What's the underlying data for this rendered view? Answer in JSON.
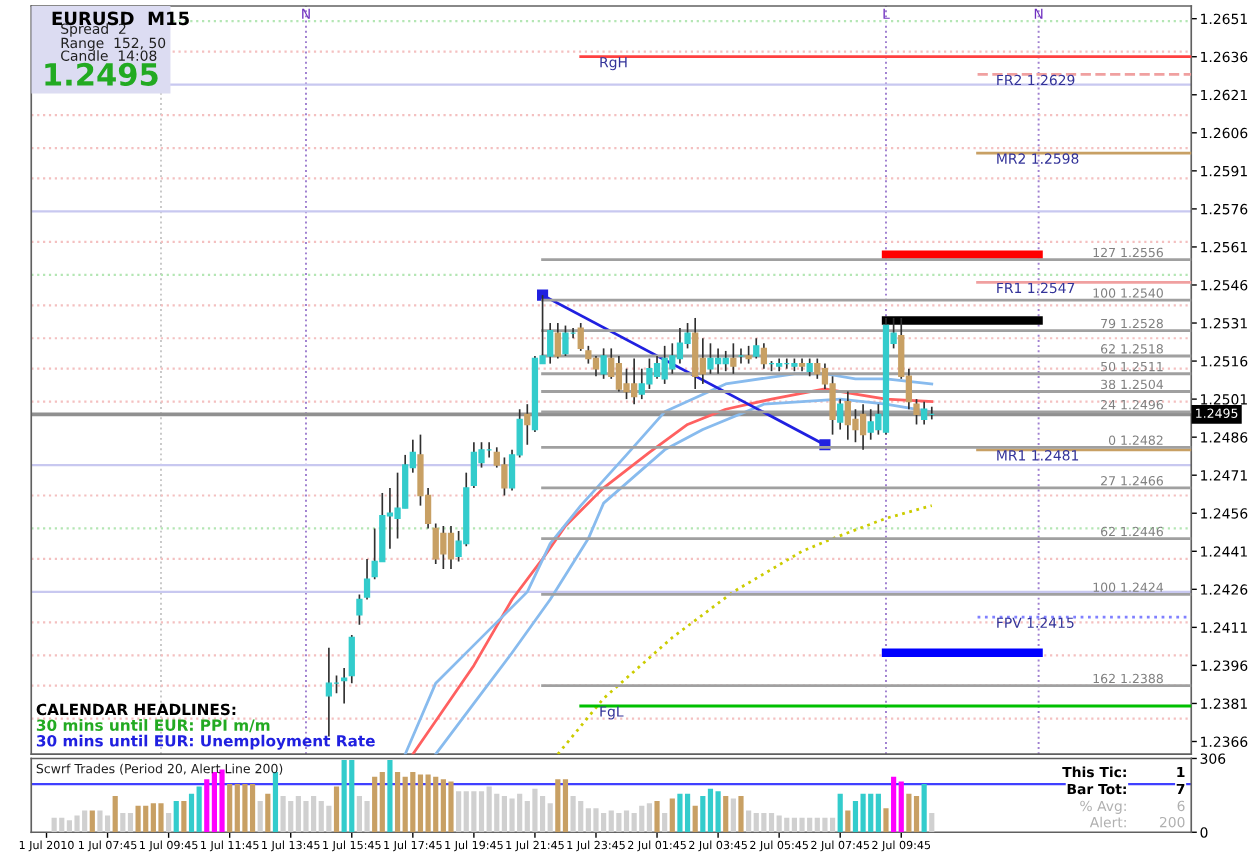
{
  "chart_data": [
    {
      "type": "candlestick",
      "title": "EURUSD  M15",
      "annotations": [
        "Spread  2",
        "Range  152, 50",
        "Candle  14:08",
        "1.2495",
        "CALENDAR HEADLINES:",
        "30 mins until EUR: PPI m/m",
        "30 mins until EUR: Unemployment Rate"
      ],
      "xlim": [
        "2010-07-01T05:15",
        "2010-07-02T19:15"
      ],
      "ylim": [
        1.2361,
        1.2656
      ],
      "yticks": [
        1.2651,
        1.2636,
        1.2621,
        1.2606,
        1.2591,
        1.2576,
        1.2561,
        1.2546,
        1.2531,
        1.2516,
        1.2501,
        1.2486,
        1.2471,
        1.2456,
        1.2441,
        1.2426,
        1.2411,
        1.2396,
        1.2381,
        1.2366
      ],
      "tick_labels": "y",
      "grid": false,
      "legend": false,
      "series": [
        {
          "type": "candlestick",
          "x": [
            "2010-07-01T15:00",
            "2010-07-01T15:15",
            "2010-07-01T15:30",
            "2010-07-01T15:45",
            "2010-07-01T16:00",
            "2010-07-01T16:15",
            "2010-07-01T16:30",
            "2010-07-01T16:45",
            "2010-07-01T17:00",
            "2010-07-01T17:15",
            "2010-07-01T17:30",
            "2010-07-01T17:45",
            "2010-07-01T18:00",
            "2010-07-01T18:15",
            "2010-07-01T18:30",
            "2010-07-01T18:45",
            "2010-07-01T19:00",
            "2010-07-01T19:15",
            "2010-07-01T19:30",
            "2010-07-01T19:45",
            "2010-07-01T20:00",
            "2010-07-01T20:15",
            "2010-07-01T20:30",
            "2010-07-01T20:45",
            "2010-07-01T21:00",
            "2010-07-01T21:15",
            "2010-07-01T21:30",
            "2010-07-01T21:45",
            "2010-07-01T22:00",
            "2010-07-01T22:15",
            "2010-07-01T22:30",
            "2010-07-01T22:45",
            "2010-07-01T23:00",
            "2010-07-01T23:15",
            "2010-07-01T23:30",
            "2010-07-01T23:45",
            "2010-07-02T00:00",
            "2010-07-02T00:15",
            "2010-07-02T00:30",
            "2010-07-02T00:45",
            "2010-07-02T01:00",
            "2010-07-02T01:15",
            "2010-07-02T01:30",
            "2010-07-02T01:45",
            "2010-07-02T02:00",
            "2010-07-02T02:15",
            "2010-07-02T02:30",
            "2010-07-02T02:45",
            "2010-07-02T03:00",
            "2010-07-02T03:15",
            "2010-07-02T03:30",
            "2010-07-02T03:45",
            "2010-07-02T04:00",
            "2010-07-02T04:15",
            "2010-07-02T04:30",
            "2010-07-02T04:45",
            "2010-07-02T05:00",
            "2010-07-02T05:15",
            "2010-07-02T05:30",
            "2010-07-02T05:45",
            "2010-07-02T06:00",
            "2010-07-02T06:15",
            "2010-07-02T06:30",
            "2010-07-02T06:45",
            "2010-07-02T07:00",
            "2010-07-02T07:15",
            "2010-07-02T07:30",
            "2010-07-02T07:45",
            "2010-07-02T08:00",
            "2010-07-02T08:15",
            "2010-07-02T08:30",
            "2010-07-02T08:45",
            "2010-07-02T09:00",
            "2010-07-02T09:15",
            "2010-07-02T09:30",
            "2010-07-02T09:45",
            "2010-07-02T10:00",
            "2010-07-02T10:15",
            "2010-07-02T10:30",
            "2010-07-02T10:45"
          ],
          "ohlc": [
            [
              1.2384,
              1.2403,
              1.2368,
              1.2389
            ],
            [
              1.2389,
              1.2392,
              1.2385,
              1.2389
            ],
            [
              1.239,
              1.2395,
              1.2381,
              1.2391
            ],
            [
              1.2392,
              1.2408,
              1.2389,
              1.2407
            ],
            [
              1.2416,
              1.2424,
              1.2412,
              1.2422
            ],
            [
              1.2423,
              1.2438,
              1.2422,
              1.243
            ],
            [
              1.2431,
              1.245,
              1.243,
              1.2437
            ],
            [
              1.2437,
              1.2464,
              1.2437,
              1.2455
            ],
            [
              1.2455,
              1.2466,
              1.2442,
              1.2456
            ],
            [
              1.2454,
              1.2472,
              1.2446,
              1.2458
            ],
            [
              1.2458,
              1.2479,
              1.2458,
              1.2475
            ],
            [
              1.2474,
              1.2485,
              1.2472,
              1.248
            ],
            [
              1.2479,
              1.2487,
              1.2459,
              1.2463
            ],
            [
              1.2463,
              1.2466,
              1.245,
              1.2452
            ],
            [
              1.245,
              1.2452,
              1.2436,
              1.2438
            ],
            [
              1.2448,
              1.2451,
              1.2434,
              1.244
            ],
            [
              1.2448,
              1.2451,
              1.2434,
              1.2438
            ],
            [
              1.2439,
              1.2449,
              1.2437,
              1.2445
            ],
            [
              1.2444,
              1.2472,
              1.2443,
              1.2466
            ],
            [
              1.2467,
              1.2484,
              1.2466,
              1.248
            ],
            [
              1.2476,
              1.2484,
              1.2474,
              1.2481
            ],
            [
              1.2481,
              1.2484,
              1.2478,
              1.2481
            ],
            [
              1.248,
              1.2482,
              1.2474,
              1.2475
            ],
            [
              1.2475,
              1.2478,
              1.2463,
              1.2466
            ],
            [
              1.2466,
              1.2481,
              1.2465,
              1.2479
            ],
            [
              1.2479,
              1.2497,
              1.2478,
              1.2493
            ],
            [
              1.2495,
              1.2499,
              1.2483,
              1.2491
            ],
            [
              1.2489,
              1.2518,
              1.2488,
              1.2517
            ],
            [
              1.2515,
              1.2542,
              1.2515,
              1.2518
            ],
            [
              1.2518,
              1.2531,
              1.2515,
              1.2528
            ],
            [
              1.2527,
              1.2531,
              1.2517,
              1.2518
            ],
            [
              1.2519,
              1.253,
              1.2518,
              1.2527
            ],
            [
              1.2527,
              1.2529,
              1.2525,
              1.2527
            ],
            [
              1.2529,
              1.2531,
              1.252,
              1.2521
            ],
            [
              1.252,
              1.2522,
              1.2515,
              1.2517
            ],
            [
              1.2517,
              1.2518,
              1.251,
              1.2513
            ],
            [
              1.2511,
              1.2521,
              1.2509,
              1.2518
            ],
            [
              1.2517,
              1.2521,
              1.2509,
              1.251
            ],
            [
              1.2515,
              1.2518,
              1.2504,
              1.2505
            ],
            [
              1.2507,
              1.2513,
              1.2501,
              1.2504
            ],
            [
              1.2507,
              1.2517,
              1.2499,
              1.2502
            ],
            [
              1.2503,
              1.2513,
              1.2501,
              1.2507
            ],
            [
              1.2507,
              1.2517,
              1.2505,
              1.2513
            ],
            [
              1.251,
              1.2518,
              1.2509,
              1.2515
            ],
            [
              1.2509,
              1.2522,
              1.2507,
              1.2517
            ],
            [
              1.2513,
              1.2523,
              1.2511,
              1.2518
            ],
            [
              1.2517,
              1.2529,
              1.2515,
              1.2523
            ],
            [
              1.2523,
              1.2531,
              1.2521,
              1.2527
            ],
            [
              1.2527,
              1.2533,
              1.2505,
              1.251
            ],
            [
              1.2517,
              1.2525,
              1.2507,
              1.2511
            ],
            [
              1.2513,
              1.2523,
              1.2511,
              1.2517
            ],
            [
              1.2515,
              1.2521,
              1.2511,
              1.2517
            ],
            [
              1.2515,
              1.252,
              1.2512,
              1.2517
            ],
            [
              1.2517,
              1.2523,
              1.2511,
              1.2514
            ],
            [
              1.2518,
              1.2521,
              1.2515,
              1.2518
            ],
            [
              1.2518,
              1.2522,
              1.2515,
              1.2517
            ],
            [
              1.2518,
              1.2525,
              1.2517,
              1.2522
            ],
            [
              1.2521,
              1.2523,
              1.2513,
              1.2515
            ],
            [
              1.2515,
              1.2516,
              1.2512,
              1.2515
            ],
            [
              1.2514,
              1.2517,
              1.2512,
              1.2515
            ],
            [
              1.2515,
              1.2517,
              1.2513,
              1.2515
            ],
            [
              1.2514,
              1.2517,
              1.2512,
              1.2515
            ],
            [
              1.2515,
              1.2517,
              1.2512,
              1.2514
            ],
            [
              1.2512,
              1.2517,
              1.251,
              1.2515
            ],
            [
              1.2515,
              1.2517,
              1.2509,
              1.2511
            ],
            [
              1.2513,
              1.2515,
              1.2505,
              1.2507
            ],
            [
              1.2507,
              1.251,
              1.2487,
              1.2493
            ],
            [
              1.2492,
              1.2501,
              1.2489,
              1.2499
            ],
            [
              1.25,
              1.2504,
              1.2485,
              1.2491
            ],
            [
              1.2493,
              1.2497,
              1.2484,
              1.2489
            ],
            [
              1.2495,
              1.2499,
              1.2481,
              1.2487
            ],
            [
              1.2488,
              1.2497,
              1.2485,
              1.2492
            ],
            [
              1.2489,
              1.2499,
              1.2487,
              1.2495
            ],
            [
              1.2488,
              1.2533,
              1.2487,
              1.253
            ],
            [
              1.2523,
              1.2533,
              1.2521,
              1.2527
            ],
            [
              1.2526,
              1.2533,
              1.2509,
              1.251
            ],
            [
              1.251,
              1.2513,
              1.2497,
              1.25
            ],
            [
              1.2499,
              1.2501,
              1.2491,
              1.2495
            ],
            [
              1.2493,
              1.25,
              1.2491,
              1.2497
            ],
            [
              1.2495,
              1.2498,
              1.2493,
              1.2495
            ]
          ],
          "colors": [
            "#33cccc",
            "#33cccc",
            "#33cccc",
            "#33cccc",
            "#33cccc",
            "#33cccc",
            "#33cccc",
            "#33cccc",
            "#33cccc",
            "#33cccc",
            "#33cccc",
            "#33cccc",
            "#c8a064",
            "#c8a064",
            "#c8a064",
            "#c8a064",
            "#c8a064",
            "#33cccc",
            "#33cccc",
            "#33cccc",
            "#33cccc",
            "#33cccc",
            "#c8a064",
            "#c8a064",
            "#33cccc",
            "#33cccc",
            "#c8a064",
            "#33cccc",
            "#33cccc",
            "#33cccc",
            "#c8a064",
            "#33cccc",
            "#33cccc",
            "#c8a064",
            "#c8a064",
            "#c8a064",
            "#33cccc",
            "#c8a064",
            "#c8a064",
            "#c8a064",
            "#c8a064",
            "#33cccc",
            "#33cccc",
            "#33cccc",
            "#33cccc",
            "#33cccc",
            "#33cccc",
            "#33cccc",
            "#c8a064",
            "#c8a064",
            "#33cccc",
            "#33cccc",
            "#33cccc",
            "#c8a064",
            "#33cccc",
            "#c8a064",
            "#33cccc",
            "#c8a064",
            "#33cccc",
            "#33cccc",
            "#33cccc",
            "#33cccc",
            "#c8a064",
            "#33cccc",
            "#c8a064",
            "#c8a064",
            "#c8a064",
            "#33cccc",
            "#c8a064",
            "#c8a064",
            "#c8a064",
            "#33cccc",
            "#33cccc",
            "#33cccc",
            "#33cccc",
            "#c8a064",
            "#c8a064",
            "#c8a064",
            "#33cccc",
            "#33cccc"
          ]
        },
        {
          "type": "line",
          "color": "#ff6060",
          "x": [
            "2010-07-01T17:45",
            "2010-07-01T19:45",
            "2010-07-01T21:00",
            "2010-07-01T22:00",
            "2010-07-01T22:45",
            "2010-07-02T00:00",
            "2010-07-02T01:30",
            "2010-07-02T02:45",
            "2010-07-02T04:00",
            "2010-07-02T05:30",
            "2010-07-02T07:15",
            "2010-07-02T08:15",
            "2010-07-02T09:15",
            "2010-07-02T10:45"
          ],
          "values": [
            1.2361,
            1.2396,
            1.2422,
            1.2438,
            1.2451,
            1.2466,
            1.248,
            1.2491,
            1.2497,
            1.2501,
            1.2505,
            1.2503,
            1.2501,
            1.25
          ]
        },
        {
          "type": "line",
          "color": "#88bbee",
          "x": [
            "2010-07-01T17:30",
            "2010-07-01T18:30",
            "2010-07-01T19:45",
            "2010-07-01T21:30",
            "2010-07-01T22:15",
            "2010-07-01T23:15",
            "2010-07-02T00:45",
            "2010-07-02T02:00",
            "2010-07-02T04:00",
            "2010-07-02T06:15",
            "2010-07-02T07:15",
            "2010-07-02T08:15",
            "2010-07-02T09:15",
            "2010-07-02T10:45"
          ],
          "values": [
            1.2361,
            1.2389,
            1.2404,
            1.2425,
            1.2444,
            1.2459,
            1.2479,
            1.2496,
            1.2507,
            1.2511,
            1.2511,
            1.2509,
            1.2509,
            1.2507
          ]
        },
        {
          "type": "line",
          "color": "#88bbee",
          "x": [
            "2010-07-01T18:30",
            "2010-07-01T19:45",
            "2010-07-01T21:00",
            "2010-07-01T22:15",
            "2010-07-01T23:30",
            "2010-07-02T00:00",
            "2010-07-02T02:00",
            "2010-07-02T03:15",
            "2010-07-02T05:15",
            "2010-07-02T07:45",
            "2010-07-02T09:15",
            "2010-07-02T10:45"
          ],
          "values": [
            1.2361,
            1.2381,
            1.2401,
            1.2422,
            1.2446,
            1.246,
            1.2481,
            1.2489,
            1.2499,
            1.2501,
            1.2499,
            1.2496
          ]
        },
        {
          "type": "line",
          "color": "#cccc00",
          "line_style": "dotted",
          "x": [
            "2010-07-01T22:30",
            "2010-07-02T00:00",
            "2010-07-02T02:15",
            "2010-07-02T04:15",
            "2010-07-02T06:30",
            "2010-07-02T07:30",
            "2010-07-02T09:15",
            "2010-07-02T10:45"
          ],
          "values": [
            1.2361,
            1.2383,
            1.2407,
            1.2425,
            1.2441,
            1.2446,
            1.2454,
            1.2459
          ]
        },
        {
          "type": "line",
          "color": "#2020e0",
          "marker": "square",
          "x": [
            "2010-07-01T22:00",
            "2010-07-02T07:15"
          ],
          "values": [
            1.2542,
            1.2483
          ]
        },
        {
          "type": "line",
          "color": "#ff0000",
          "x": [
            "2010-07-02T09:15",
            "2010-07-02T14:15"
          ],
          "values": [
            1.2558,
            1.2558
          ]
        },
        {
          "type": "line",
          "color": "#000000",
          "x": [
            "2010-07-02T09:15",
            "2010-07-02T14:15"
          ],
          "values": [
            1.2532,
            1.2532
          ]
        },
        {
          "type": "line",
          "color": "#0000ff",
          "x": [
            "2010-07-02T09:15",
            "2010-07-02T14:15"
          ],
          "values": [
            1.2401,
            1.2401
          ]
        },
        {
          "type": "line",
          "name": "RgH",
          "color": "#ff4040",
          "x": [
            "2010-07-01T23:15",
            "2010-07-02T19:15"
          ],
          "values": [
            1.2636,
            1.2636
          ]
        },
        {
          "type": "line",
          "name": "FgL",
          "color": "#00c000",
          "x": [
            "2010-07-01T23:15",
            "2010-07-02T19:15"
          ],
          "values": [
            1.238,
            1.238
          ]
        },
        {
          "type": "line",
          "name": "FR2 1.2629",
          "color": "#f0a0a0",
          "line_style": "dashed",
          "x": [
            "2010-07-02T12:15",
            "2010-07-02T19:15"
          ],
          "values": [
            1.2629,
            1.2629
          ]
        },
        {
          "type": "line",
          "name": "MR2 1.2598",
          "color": "#c8a064",
          "x": [
            "2010-07-02T12:15",
            "2010-07-02T19:15"
          ],
          "values": [
            1.2598,
            1.2598
          ]
        },
        {
          "type": "line",
          "name": "FR1 1.2547",
          "color": "#f0a0a0",
          "x": [
            "2010-07-02T12:15",
            "2010-07-02T19:15"
          ],
          "values": [
            1.2547,
            1.2547
          ]
        },
        {
          "type": "line",
          "name": "MR1 1.2481",
          "color": "#c8a064",
          "x": [
            "2010-07-02T12:15",
            "2010-07-02T19:15"
          ],
          "values": [
            1.2481,
            1.2481
          ]
        },
        {
          "type": "line",
          "name": "FPV 1.2415",
          "color": "#8080ff",
          "line_style": "dotted",
          "x": [
            "2010-07-02T12:15",
            "2010-07-02T19:15"
          ],
          "values": [
            1.2415,
            1.2415
          ]
        },
        {
          "type": "line",
          "name": "127 1.2556",
          "color": "#a0a0a0",
          "x": [
            "2010-07-01T22:00",
            "2010-07-02T19:15"
          ],
          "values": [
            1.2556,
            1.2556
          ]
        },
        {
          "type": "line",
          "name": "100 1.2540",
          "color": "#a0a0a0",
          "x": [
            "2010-07-01T22:00",
            "2010-07-02T19:15"
          ],
          "values": [
            1.254,
            1.254
          ]
        },
        {
          "type": "line",
          "name": "79 1.2528",
          "color": "#a0a0a0",
          "x": [
            "2010-07-01T22:00",
            "2010-07-02T19:15"
          ],
          "values": [
            1.2528,
            1.2528
          ]
        },
        {
          "type": "line",
          "name": "62 1.2518",
          "color": "#a0a0a0",
          "x": [
            "2010-07-01T22:00",
            "2010-07-02T19:15"
          ],
          "values": [
            1.2518,
            1.2518
          ]
        },
        {
          "type": "line",
          "name": "50 1.2511",
          "color": "#a0a0a0",
          "x": [
            "2010-07-01T22:00",
            "2010-07-02T19:15"
          ],
          "values": [
            1.2511,
            1.2511
          ]
        },
        {
          "type": "line",
          "name": "38 1.2504",
          "color": "#a0a0a0",
          "x": [
            "2010-07-01T22:00",
            "2010-07-02T19:15"
          ],
          "values": [
            1.2504,
            1.2504
          ]
        },
        {
          "type": "line",
          "name": "24 1.2496",
          "color": "#a0a0a0",
          "x": [
            "2010-07-01T22:00",
            "2010-07-02T19:15"
          ],
          "values": [
            1.2496,
            1.2496
          ]
        },
        {
          "type": "line",
          "name": "0 1.2482",
          "color": "#a0a0a0",
          "x": [
            "2010-07-01T22:00",
            "2010-07-02T19:15"
          ],
          "values": [
            1.2482,
            1.2482
          ]
        },
        {
          "type": "line",
          "name": "27 1.2466",
          "color": "#a0a0a0",
          "x": [
            "2010-07-01T22:00",
            "2010-07-02T19:15"
          ],
          "values": [
            1.2466,
            1.2466
          ]
        },
        {
          "type": "line",
          "name": "62 1.2446",
          "color": "#a0a0a0",
          "x": [
            "2010-07-01T22:00",
            "2010-07-02T19:15"
          ],
          "values": [
            1.2446,
            1.2446
          ]
        },
        {
          "type": "line",
          "name": "100 1.2424",
          "color": "#a0a0a0",
          "x": [
            "2010-07-01T22:00",
            "2010-07-02T19:15"
          ],
          "values": [
            1.2424,
            1.2424
          ]
        },
        {
          "type": "line",
          "name": "162 1.2388",
          "color": "#a0a0a0",
          "x": [
            "2010-07-01T22:00",
            "2010-07-02T19:15"
          ],
          "values": [
            1.2388,
            1.2388
          ]
        }
      ],
      "ref_lines": [
        {
          "axis": "x",
          "value": "2010-07-01T09:30",
          "color": "#c8c8c8",
          "line_style": "dotted"
        },
        {
          "axis": "x",
          "value": "2010-07-01T14:15",
          "label": "N",
          "color": "#a080d0",
          "line_style": "dotted"
        },
        {
          "axis": "x",
          "value": "2010-07-02T09:15",
          "label": "L",
          "color": "#a080d0",
          "line_style": "dotted"
        },
        {
          "axis": "x",
          "value": "2010-07-02T14:15",
          "label": "N",
          "color": "#a080d0",
          "line_style": "dotted"
        },
        {
          "axis": "y",
          "value": 1.265,
          "color": "#b4e6b4",
          "line_style": "dotted"
        },
        {
          "axis": "y",
          "value": 1.2638,
          "color": "#f4c0c0",
          "line_style": "dotted"
        },
        {
          "axis": "y",
          "value": 1.2625,
          "color": "#c8c8f0"
        },
        {
          "axis": "y",
          "value": 1.2613,
          "color": "#f4c0c0",
          "line_style": "dotted"
        },
        {
          "axis": "y",
          "value": 1.26,
          "color": "#f4c0c0",
          "line_style": "dotted"
        },
        {
          "axis": "y",
          "value": 1.2588,
          "color": "#f4c0c0",
          "line_style": "dotted"
        },
        {
          "axis": "y",
          "value": 1.2575,
          "color": "#c8c8f0"
        },
        {
          "axis": "y",
          "value": 1.2563,
          "color": "#f4c0c0",
          "line_style": "dotted"
        },
        {
          "axis": "y",
          "value": 1.255,
          "color": "#b4e6b4",
          "line_style": "dotted"
        },
        {
          "axis": "y",
          "value": 1.2538,
          "color": "#f4c0c0",
          "line_style": "dotted"
        },
        {
          "axis": "y",
          "value": 1.2525,
          "color": "#f4c0c0",
          "line_style": "dotted"
        },
        {
          "axis": "y",
          "value": 1.2513,
          "color": "#f4c0c0",
          "line_style": "dotted"
        },
        {
          "axis": "y",
          "value": 1.25,
          "color": "#f4c0c0",
          "line_style": "dotted"
        },
        {
          "axis": "y",
          "value": 1.2475,
          "color": "#c8c8f0"
        },
        {
          "axis": "y",
          "value": 1.2463,
          "color": "#f4c0c0",
          "line_style": "dotted"
        },
        {
          "axis": "y",
          "value": 1.245,
          "color": "#b4e6b4",
          "line_style": "dotted"
        },
        {
          "axis": "y",
          "value": 1.2438,
          "color": "#f4c0c0",
          "line_style": "dotted"
        },
        {
          "axis": "y",
          "value": 1.2425,
          "color": "#c8c8f0"
        },
        {
          "axis": "y",
          "value": 1.2413,
          "color": "#f4c0c0",
          "line_style": "dotted"
        },
        {
          "axis": "y",
          "value": 1.24,
          "color": "#f4c0c0",
          "line_style": "dotted"
        },
        {
          "axis": "y",
          "value": 1.2388,
          "color": "#f4c0c0",
          "line_style": "dotted"
        },
        {
          "axis": "y",
          "value": 1.2375,
          "color": "#f4c0c0",
          "line_style": "dotted"
        },
        {
          "axis": "y",
          "value": 1.2495,
          "label": "1.2495",
          "color": "#909090"
        }
      ]
    },
    {
      "type": "bar",
      "title": "Scwrf Trades (Period 20, Alert Line 200)",
      "annotations": [
        "This Tic:",
        "1",
        "Bar Tot:",
        "7",
        "% Avg:",
        "6",
        "Alert:",
        "200"
      ],
      "xlim": [
        "2010-07-01T05:15",
        "2010-07-02T19:15"
      ],
      "ylim": [
        0,
        306
      ],
      "yticks": [
        306,
        0
      ],
      "grid": false,
      "legend": false,
      "xticks": [
        {
          "value": "2010-07-01T05:45",
          "label": "1 Jul 2010"
        },
        {
          "value": "2010-07-01T07:45",
          "label": "1 Jul 07:45"
        },
        {
          "value": "2010-07-01T09:45",
          "label": "1 Jul 09:45"
        },
        {
          "value": "2010-07-01T11:45",
          "label": "1 Jul 11:45"
        },
        {
          "value": "2010-07-01T13:45",
          "label": "1 Jul 13:45"
        },
        {
          "value": "2010-07-01T15:45",
          "label": "1 Jul 15:45"
        },
        {
          "value": "2010-07-01T17:45",
          "label": "1 Jul 17:45"
        },
        {
          "value": "2010-07-01T19:45",
          "label": "1 Jul 19:45"
        },
        {
          "value": "2010-07-01T21:45",
          "label": "1 Jul 21:45"
        },
        {
          "value": "2010-07-01T23:45",
          "label": "1 Jul 23:45"
        },
        {
          "value": "2010-07-02T01:45",
          "label": "2 Jul 01:45"
        },
        {
          "value": "2010-07-02T03:45",
          "label": "2 Jul 03:45"
        },
        {
          "value": "2010-07-02T05:45",
          "label": "2 Jul 05:45"
        },
        {
          "value": "2010-07-02T07:45",
          "label": "2 Jul 07:45"
        },
        {
          "value": "2010-07-02T09:45",
          "label": "2 Jul 09:45"
        }
      ],
      "x": [
        "2010-07-01T06:00",
        "2010-07-01T06:15",
        "2010-07-01T06:30",
        "2010-07-01T06:45",
        "2010-07-01T07:00",
        "2010-07-01T07:15",
        "2010-07-01T07:30",
        "2010-07-01T07:45",
        "2010-07-01T08:00",
        "2010-07-01T08:15",
        "2010-07-01T08:30",
        "2010-07-01T08:45",
        "2010-07-01T09:00",
        "2010-07-01T09:15",
        "2010-07-01T09:30",
        "2010-07-01T09:45",
        "2010-07-01T10:00",
        "2010-07-01T10:15",
        "2010-07-01T10:30",
        "2010-07-01T10:45",
        "2010-07-01T11:00",
        "2010-07-01T11:15",
        "2010-07-01T11:30",
        "2010-07-01T11:45",
        "2010-07-01T12:00",
        "2010-07-01T12:15",
        "2010-07-01T12:30",
        "2010-07-01T12:45",
        "2010-07-01T13:00",
        "2010-07-01T13:15",
        "2010-07-01T13:30",
        "2010-07-01T13:45",
        "2010-07-01T14:00",
        "2010-07-01T14:15",
        "2010-07-01T14:30",
        "2010-07-01T14:45",
        "2010-07-01T15:00",
        "2010-07-01T15:15",
        "2010-07-01T15:30",
        "2010-07-01T15:45",
        "2010-07-01T16:00",
        "2010-07-01T16:15",
        "2010-07-01T16:30",
        "2010-07-01T16:45",
        "2010-07-01T17:00",
        "2010-07-01T17:15",
        "2010-07-01T17:30",
        "2010-07-01T17:45",
        "2010-07-01T18:00",
        "2010-07-01T18:15",
        "2010-07-01T18:30",
        "2010-07-01T18:45",
        "2010-07-01T19:00",
        "2010-07-01T19:15",
        "2010-07-01T19:30",
        "2010-07-01T19:45",
        "2010-07-01T20:00",
        "2010-07-01T20:15",
        "2010-07-01T20:30",
        "2010-07-01T20:45",
        "2010-07-01T21:00",
        "2010-07-01T21:15",
        "2010-07-01T21:30",
        "2010-07-01T21:45",
        "2010-07-01T22:00",
        "2010-07-01T22:15",
        "2010-07-01T22:30",
        "2010-07-01T22:45",
        "2010-07-01T23:00",
        "2010-07-01T23:15",
        "2010-07-01T23:30",
        "2010-07-01T23:45",
        "2010-07-02T00:00",
        "2010-07-02T00:15",
        "2010-07-02T00:30",
        "2010-07-02T00:45",
        "2010-07-02T01:00",
        "2010-07-02T01:15",
        "2010-07-02T01:30",
        "2010-07-02T01:45",
        "2010-07-02T02:00",
        "2010-07-02T02:15",
        "2010-07-02T02:30",
        "2010-07-02T02:45",
        "2010-07-02T03:00",
        "2010-07-02T03:15",
        "2010-07-02T03:30",
        "2010-07-02T03:45",
        "2010-07-02T04:00",
        "2010-07-02T04:15",
        "2010-07-02T04:30",
        "2010-07-02T04:45",
        "2010-07-02T05:00",
        "2010-07-02T05:15",
        "2010-07-02T05:30",
        "2010-07-02T05:45",
        "2010-07-02T06:00",
        "2010-07-02T06:15",
        "2010-07-02T06:30",
        "2010-07-02T06:45",
        "2010-07-02T07:00",
        "2010-07-02T07:15",
        "2010-07-02T07:30",
        "2010-07-02T07:45",
        "2010-07-02T08:00",
        "2010-07-02T08:15",
        "2010-07-02T08:30",
        "2010-07-02T08:45",
        "2010-07-02T09:00",
        "2010-07-02T09:15",
        "2010-07-02T09:30",
        "2010-07-02T09:45",
        "2010-07-02T10:00",
        "2010-07-02T10:15",
        "2010-07-02T10:30",
        "2010-07-02T10:45"
      ],
      "values": [
        60,
        60,
        50,
        70,
        90,
        90,
        90,
        70,
        150,
        80,
        80,
        110,
        110,
        120,
        120,
        80,
        130,
        130,
        160,
        190,
        220,
        250,
        260,
        200,
        200,
        200,
        200,
        130,
        160,
        250,
        150,
        130,
        150,
        130,
        150,
        130,
        110,
        190,
        300,
        300,
        150,
        130,
        230,
        250,
        300,
        250,
        230,
        250,
        240,
        240,
        230,
        220,
        210,
        170,
        170,
        170,
        170,
        190,
        160,
        150,
        140,
        160,
        130,
        180,
        150,
        120,
        220,
        220,
        150,
        130,
        100,
        100,
        80,
        90,
        80,
        90,
        80,
        110,
        120,
        130,
        80,
        140,
        160,
        160,
        110,
        150,
        180,
        170,
        150,
        140,
        150,
        90,
        80,
        80,
        80,
        70,
        60,
        60,
        60,
        60,
        60,
        60,
        60,
        160,
        90,
        130,
        160,
        160,
        160,
        100,
        230,
        210,
        160,
        150,
        200,
        80
      ],
      "colors": [
        "#d0d0d0",
        "#d0d0d0",
        "#d0d0d0",
        "#d0d0d0",
        "#d0d0d0",
        "#c8a064",
        "#d0d0d0",
        "#d0d0d0",
        "#c8a064",
        "#d0d0d0",
        "#d0d0d0",
        "#c8a064",
        "#c8a064",
        "#c8a064",
        "#c8a064",
        "#d0d0d0",
        "#33cccc",
        "#c8a064",
        "#33cccc",
        "#33cccc",
        "#ff00ff",
        "#ff00ff",
        "#ff00ff",
        "#c8a064",
        "#c8a064",
        "#c8a064",
        "#c8a064",
        "#d0d0d0",
        "#c8a064",
        "#33cccc",
        "#d0d0d0",
        "#d0d0d0",
        "#d0d0d0",
        "#d0d0d0",
        "#d0d0d0",
        "#d0d0d0",
        "#d0d0d0",
        "#c8a064",
        "#33cccc",
        "#33cccc",
        "#d0d0d0",
        "#d0d0d0",
        "#c8a064",
        "#c8a064",
        "#33cccc",
        "#c8a064",
        "#c8a064",
        "#c8a064",
        "#c8a064",
        "#c8a064",
        "#c8a064",
        "#c8a064",
        "#c8a064",
        "#d0d0d0",
        "#d0d0d0",
        "#d0d0d0",
        "#d0d0d0",
        "#d0d0d0",
        "#d0d0d0",
        "#d0d0d0",
        "#d0d0d0",
        "#d0d0d0",
        "#d0d0d0",
        "#d0d0d0",
        "#d0d0d0",
        "#d0d0d0",
        "#c8a064",
        "#c8a064",
        "#d0d0d0",
        "#d0d0d0",
        "#d0d0d0",
        "#d0d0d0",
        "#d0d0d0",
        "#d0d0d0",
        "#d0d0d0",
        "#d0d0d0",
        "#d0d0d0",
        "#d0d0d0",
        "#d0d0d0",
        "#c8a064",
        "#d0d0d0",
        "#c8a064",
        "#33cccc",
        "#33cccc",
        "#c8a064",
        "#33cccc",
        "#33cccc",
        "#33cccc",
        "#c8a064",
        "#d0d0d0",
        "#c8a064",
        "#d0d0d0",
        "#d0d0d0",
        "#d0d0d0",
        "#d0d0d0",
        "#d0d0d0",
        "#d0d0d0",
        "#d0d0d0",
        "#d0d0d0",
        "#d0d0d0",
        "#d0d0d0",
        "#d0d0d0",
        "#d0d0d0",
        "#33cccc",
        "#c8a064",
        "#33cccc",
        "#33cccc",
        "#33cccc",
        "#33cccc",
        "#c8a064",
        "#ff00ff",
        "#ff00ff",
        "#c8a064",
        "#c8a064",
        "#33cccc",
        "#d0d0d0"
      ],
      "ref_lines": [
        {
          "axis": "y",
          "value": 200,
          "color": "#4040ff"
        }
      ]
    }
  ]
}
